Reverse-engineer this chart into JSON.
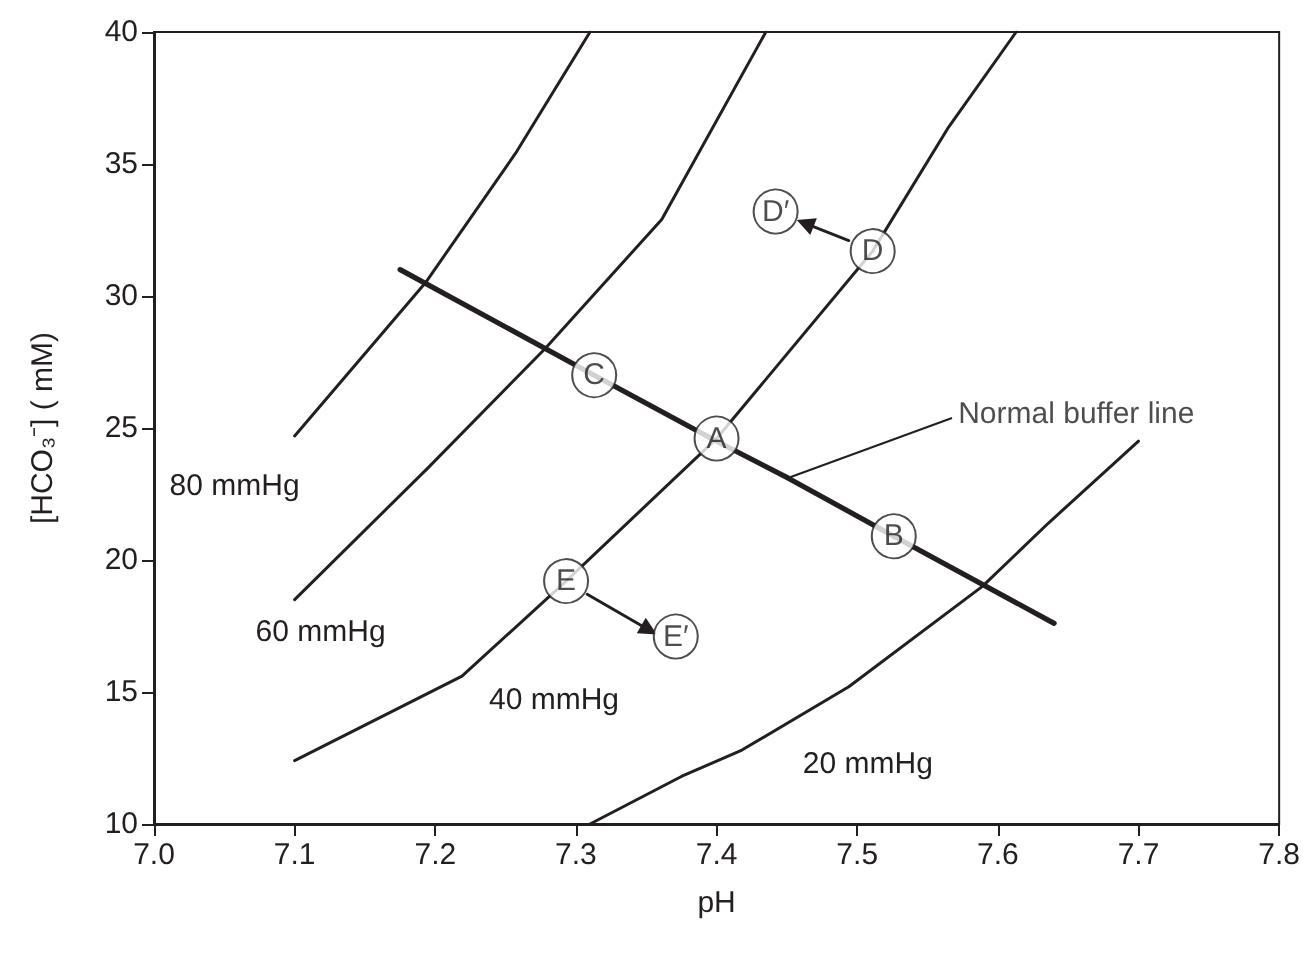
{
  "chart_data": {
    "type": "line",
    "xlabel": "pH",
    "ylabel": "[HCO₃⁻] ( mM)",
    "xlim": [
      7.0,
      7.8
    ],
    "ylim": [
      10,
      40
    ],
    "xticks": [
      {
        "value": 7.0,
        "label": "7.0"
      },
      7.1,
      7.2,
      7.3,
      7.4,
      7.5,
      7.6,
      7.7,
      7.8
    ],
    "yticks": [
      10,
      15,
      20,
      25,
      30,
      35,
      40
    ],
    "marker": "none",
    "legend": false,
    "series": [
      {
        "name": "80 mmHg",
        "color": "#231f20",
        "x": [
          7.1,
          7.193,
          7.257,
          7.31
        ],
        "values": [
          24.7,
          30.5,
          35.4,
          40
        ]
      },
      {
        "name": "60 mmHg",
        "color": "#231f20",
        "x": [
          7.1,
          7.195,
          7.278,
          7.361,
          7.435
        ],
        "values": [
          18.5,
          23.5,
          28.0,
          32.9,
          40
        ]
      },
      {
        "name": "40 mmHg",
        "color": "#231f20",
        "x": [
          7.1,
          7.219,
          7.293,
          7.4,
          7.511,
          7.565,
          7.613
        ],
        "values": [
          12.4,
          15.6,
          19.2,
          24.6,
          31.7,
          36.4,
          40
        ]
      },
      {
        "name": "20 mmHg",
        "color": "#231f20",
        "x": [
          7.31,
          7.375,
          7.418,
          7.494,
          7.589,
          7.636,
          7.7
        ],
        "values": [
          10.0,
          11.8,
          12.8,
          15.2,
          19.0,
          21.4,
          24.5
        ]
      },
      {
        "color": "#231f20",
        "x": [
          7.175,
          7.313,
          7.4,
          7.451,
          7.526,
          7.64
        ],
        "values": [
          31.0,
          27.0,
          24.5,
          23.1,
          20.9,
          17.6
        ]
      },
      {
        "color": "#231f20",
        "marker": "triangle",
        "x": [
          7.494,
          7.463
        ],
        "values": [
          32.1,
          32.75
        ]
      },
      {
        "color": "#231f20",
        "marker": "triangle",
        "x": [
          7.308,
          7.352
        ],
        "values": [
          18.7,
          17.35
        ]
      }
    ],
    "annotations": [
      {
        "text": "A",
        "x": 7.4,
        "y": 24.6
      },
      {
        "text": "B",
        "x": 7.526,
        "y": 20.9
      },
      {
        "text": "C",
        "x": 7.313,
        "y": 27.0
      },
      {
        "text": "D",
        "x": 7.511,
        "y": 31.7
      },
      {
        "text": "D′",
        "x": 7.442,
        "y": 33.2
      },
      {
        "text": "E",
        "x": 7.293,
        "y": 19.2
      },
      {
        "text": "E′",
        "x": 7.371,
        "y": 17.1
      },
      {
        "text": "Normal buffer line",
        "x": 7.451,
        "y": 23.1
      }
    ]
  }
}
